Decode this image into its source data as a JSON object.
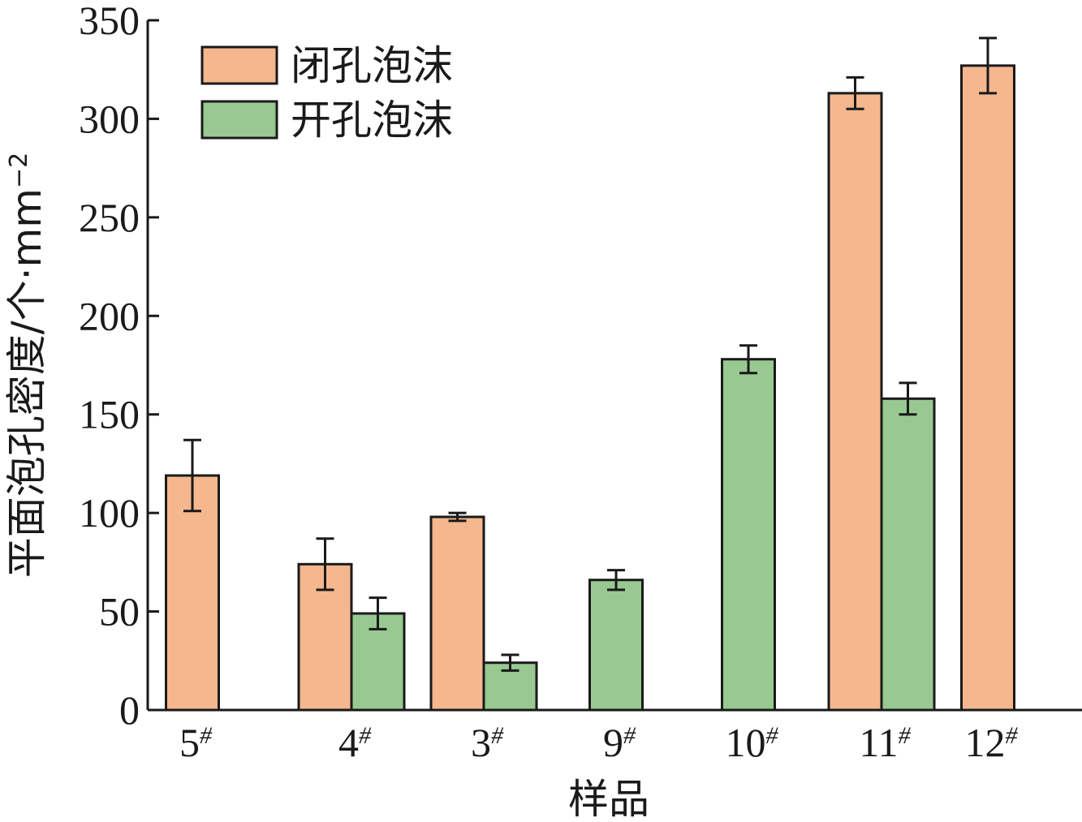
{
  "chart_data": {
    "type": "bar",
    "categories": [
      "5",
      "4",
      "3",
      "9",
      "10",
      "11",
      "12"
    ],
    "category_suffix": "#",
    "series": [
      {
        "name": "闭孔泡沫",
        "color": "#f4b78e",
        "values": [
          119,
          74,
          98,
          null,
          null,
          313,
          327
        ],
        "errors": [
          18,
          13,
          2,
          null,
          null,
          8,
          14
        ]
      },
      {
        "name": "开孔泡沫",
        "color": "#98c991",
        "values": [
          null,
          49,
          24,
          66,
          178,
          158,
          null
        ],
        "errors": [
          null,
          8,
          4,
          5,
          7,
          8,
          null
        ]
      }
    ],
    "xlabel": "样品",
    "ylabel": "平面泡孔密度/个·mm",
    "ylabel_sup": "−2",
    "ylim": [
      0,
      350
    ],
    "yticks": [
      0,
      50,
      100,
      150,
      200,
      250,
      300,
      350
    ],
    "legend_position": "top-left",
    "grid": false
  }
}
